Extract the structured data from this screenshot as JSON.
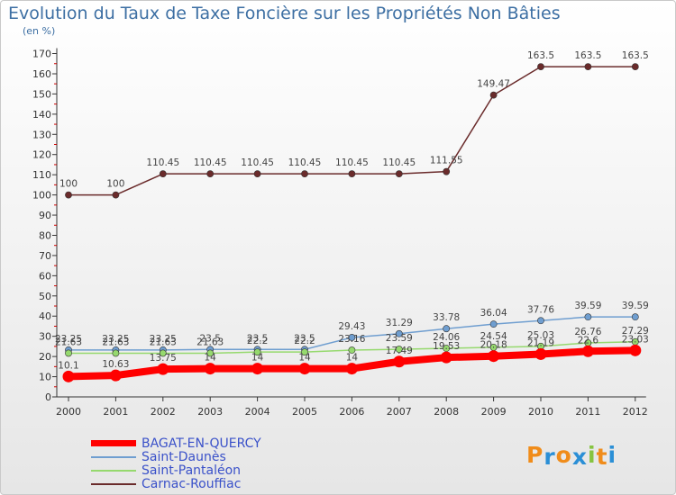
{
  "chart_data": {
    "type": "line",
    "title": "Evolution du Taux de Taxe Foncière sur les Propriétés Non Bâties",
    "unit_label": "(en %)",
    "x": [
      "2000",
      "2001",
      "2002",
      "2003",
      "2004",
      "2005",
      "2006",
      "2007",
      "2008",
      "2009",
      "2010",
      "2011",
      "2012"
    ],
    "ylim": [
      0,
      170
    ],
    "yticks": [
      0,
      10,
      20,
      30,
      40,
      50,
      60,
      70,
      80,
      90,
      100,
      110,
      120,
      130,
      140,
      150,
      160,
      170
    ],
    "grid": false,
    "legend_position": "bottom-left",
    "series": [
      {
        "name": "BAGAT-EN-QUERCY",
        "color": "#ff0000",
        "values": [
          10.1,
          10.63,
          13.75,
          14,
          14,
          14,
          14,
          17.49,
          19.53,
          20.18,
          21.19,
          22.6,
          23.03
        ],
        "labels": [
          "10.1",
          "10.63",
          "13.75",
          "14",
          "14",
          "14",
          "14",
          "17.49",
          "19.53",
          "20.18",
          "21.19",
          "22.6",
          "23.03"
        ]
      },
      {
        "name": "Saint-Daunès",
        "color": "#6f9ed0",
        "values": [
          23.25,
          23.25,
          23.25,
          23.5,
          23.5,
          23.5,
          29.43,
          31.29,
          33.78,
          36.04,
          37.76,
          39.59,
          39.59
        ],
        "labels": [
          "23.25",
          "23.25",
          "23.25",
          "23.5",
          "23.5",
          "23.5",
          "29.43",
          "31.29",
          "33.78",
          "36.04",
          "37.76",
          "39.59",
          "39.59"
        ]
      },
      {
        "name": "Saint-Pantaléon",
        "color": "#96d96e",
        "values": [
          21.63,
          21.63,
          21.63,
          21.63,
          22.2,
          22.2,
          23.16,
          23.59,
          24.06,
          24.54,
          25.03,
          26.76,
          27.29
        ],
        "labels": [
          "21.63",
          "21.63",
          "21.63",
          "21.63",
          "22.2",
          "22.2",
          "23.16",
          "23.59",
          "24.06",
          "24.54",
          "25.03",
          "26.76",
          "27.29"
        ]
      },
      {
        "name": "Carnac-Rouffiac",
        "color": "#6a2b2b",
        "values": [
          100,
          100,
          110.45,
          110.45,
          110.45,
          110.45,
          110.45,
          110.45,
          111.55,
          149.47,
          163.5,
          163.5,
          163.5
        ],
        "labels": [
          "100",
          "100",
          "110.45",
          "110.45",
          "110.45",
          "110.45",
          "110.45",
          "110.45",
          "111.55",
          "149.47",
          "163.5",
          "163.5",
          "163.5"
        ]
      }
    ]
  },
  "logo": {
    "text": "Proxiti",
    "letters": [
      "P",
      "r",
      "o",
      "x",
      "i",
      "t",
      "i"
    ],
    "colors": [
      "#f08c1a",
      "#2b8fd6",
      "#f08c1a",
      "#2b8fd6",
      "#86c440",
      "#f08c1a",
      "#2b8fd6"
    ]
  }
}
